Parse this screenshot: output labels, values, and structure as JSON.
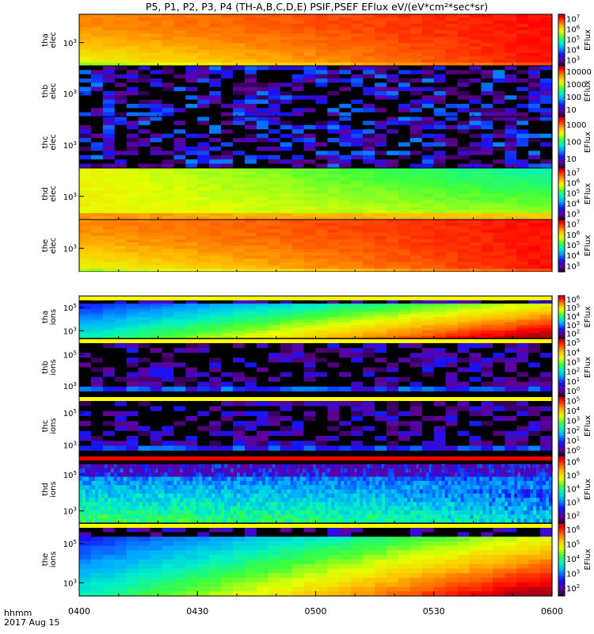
{
  "title": "P5, P1, P2, P3, P4 (TH-A,B,C,D,E) PSIF,PSEF EFlux eV/(eV*cm²*sec*sr)",
  "footer": {
    "axis_label": "hhmm",
    "date": "2017 Aug 15"
  },
  "chart_data": {
    "type": "heatmap",
    "x_ticks": [
      "0400",
      "0430",
      "0500",
      "0530",
      "0600"
    ],
    "x_range": [
      "0400",
      "0600"
    ],
    "panels": [
      {
        "name": "tha elec",
        "line1": "tha",
        "line2": "elec",
        "y_ticks": [
          "10^3"
        ],
        "cbar_label": "EFlux",
        "cbar_ticks": [
          "10^7",
          "10^6",
          "10^5",
          "10^4",
          "10^3"
        ],
        "pattern": "hot_rising"
      },
      {
        "name": "thb elec",
        "line1": "thb",
        "line2": "elec",
        "y_ticks": [
          "10^3"
        ],
        "cbar_label": "EFlux",
        "cbar_ticks": [
          "10000",
          "1000",
          "100",
          "10"
        ],
        "pattern": "sparse_dark"
      },
      {
        "name": "thc elec",
        "line1": "thc",
        "line2": "elec",
        "y_ticks": [
          "10^3"
        ],
        "cbar_label": "EFlux",
        "cbar_ticks": [
          "1000",
          "100",
          "10"
        ],
        "pattern": "sparse_dark"
      },
      {
        "name": "thd elec",
        "line1": "thd",
        "line2": "elec",
        "y_ticks": [
          "10^3"
        ],
        "cbar_label": "EFlux",
        "cbar_ticks": [
          "10^7",
          "10^6",
          "10^5",
          "10^4",
          "10^3"
        ],
        "pattern": "yellow_green"
      },
      {
        "name": "the elec",
        "line1": "the",
        "line2": "elec",
        "y_ticks": [
          "10^3"
        ],
        "cbar_label": "EFlux",
        "cbar_ticks": [
          "10^7",
          "10^6",
          "10^5",
          "10^4",
          "10^3"
        ],
        "pattern": "hot_rising"
      },
      {
        "name": "tha ions",
        "line1": "tha",
        "line2": "ions",
        "y_ticks": [
          "10^5",
          "10^3"
        ],
        "cbar_label": "EFlux",
        "cbar_ticks": [
          "10^6",
          "10^5",
          "10^4",
          "10^3",
          "10^2"
        ],
        "pattern": "ion_gradient"
      },
      {
        "name": "thb ions",
        "line1": "thb",
        "line2": "ions",
        "y_ticks": [
          "10^5",
          "10^3"
        ],
        "cbar_label": "EFlux",
        "cbar_ticks": [
          "10^5",
          "10^4",
          "10^3",
          "10^2",
          "10^1",
          "10^0"
        ],
        "pattern": "sparse_ion"
      },
      {
        "name": "thc ions",
        "line1": "thc",
        "line2": "ions",
        "y_ticks": [
          "10^5",
          "10^3"
        ],
        "cbar_label": "EFlux",
        "cbar_ticks": [
          "10^5",
          "10^4",
          "10^3",
          "10^2",
          "10^1",
          "10^0"
        ],
        "pattern": "sparse_ion"
      },
      {
        "name": "thd ions",
        "line1": "thd",
        "line2": "ions",
        "y_ticks": [
          "10^5",
          "10^3"
        ],
        "cbar_label": "EFlux",
        "cbar_ticks": [
          "10^6",
          "10^5",
          "10^4",
          "10^3",
          "10^2"
        ],
        "pattern": "thd_ion"
      },
      {
        "name": "the ions",
        "line1": "the",
        "line2": "ions",
        "y_ticks": [
          "10^5",
          "10^3"
        ],
        "cbar_label": "EFlux",
        "cbar_ticks": [
          "10^6",
          "10^5",
          "10^4",
          "10^3",
          "10^2"
        ],
        "pattern": "ion_gradient"
      }
    ]
  }
}
